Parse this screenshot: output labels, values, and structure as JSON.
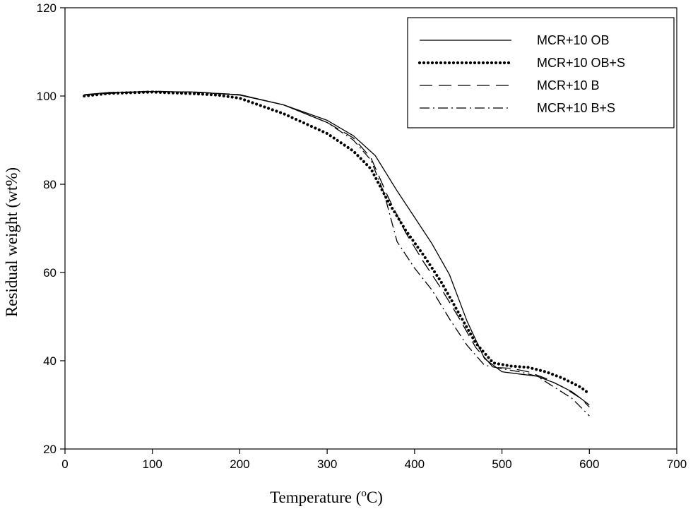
{
  "chart_data": {
    "type": "line",
    "title": "",
    "xlabel": "Temperature (",
    "xlabel_sup": "o",
    "xlabel_tail": "C)",
    "ylabel": "Residual weight (wt%)",
    "xlim": [
      0,
      700
    ],
    "ylim": [
      20,
      120
    ],
    "xticks": [
      "0",
      "100",
      "200",
      "300",
      "400",
      "500",
      "600",
      "700"
    ],
    "yticks": [
      "20",
      "40",
      "60",
      "80",
      "100",
      "120"
    ],
    "grid": false,
    "legend_position": "top-right",
    "series": [
      {
        "name": "MCR+10 OB",
        "style": "solid",
        "x": [
          22,
          50,
          100,
          150,
          200,
          250,
          300,
          330,
          355,
          380,
          400,
          420,
          440,
          460,
          480,
          500,
          520,
          540,
          560,
          580,
          600
        ],
        "y": [
          100.3,
          100.8,
          101.0,
          100.9,
          100.2,
          98.0,
          94.5,
          91.0,
          86.5,
          78.5,
          72.5,
          66.5,
          59.5,
          49.0,
          40.5,
          37.5,
          37.0,
          36.5,
          35.0,
          33.0,
          30.0
        ]
      },
      {
        "name": "MCR+10 OB+S",
        "style": "dotted",
        "x": [
          22,
          50,
          100,
          150,
          175,
          200,
          250,
          300,
          330,
          350,
          370,
          390,
          410,
          430,
          450,
          470,
          490,
          510,
          530,
          550,
          570,
          590,
          600
        ],
        "y": [
          100.0,
          100.6,
          100.9,
          100.5,
          100.2,
          99.5,
          96.0,
          91.5,
          87.5,
          83.5,
          76.0,
          69.5,
          64.0,
          58.0,
          51.0,
          44.0,
          39.5,
          38.8,
          38.5,
          37.5,
          36.0,
          34.0,
          32.5
        ]
      },
      {
        "name": "MCR+10 B",
        "style": "dashed",
        "x": [
          22,
          50,
          100,
          150,
          200,
          250,
          300,
          330,
          350,
          370,
          390,
          410,
          430,
          450,
          470,
          490,
          510,
          530,
          550,
          570,
          590,
          600
        ],
        "y": [
          100.2,
          100.6,
          101.0,
          100.9,
          100.3,
          98.0,
          94.0,
          90.5,
          86.0,
          77.0,
          69.0,
          62.5,
          56.5,
          50.0,
          43.0,
          38.5,
          38.3,
          37.5,
          36.0,
          34.0,
          31.5,
          29.5
        ]
      },
      {
        "name": "MCR+10 B+S",
        "style": "dashdot",
        "x": [
          22,
          50,
          100,
          150,
          200,
          250,
          300,
          330,
          350,
          365,
          380,
          400,
          420,
          440,
          460,
          480,
          500,
          520,
          540,
          560,
          580,
          600
        ],
        "y": [
          100.2,
          100.7,
          101.1,
          100.8,
          100.3,
          98.0,
          94.0,
          90.0,
          85.5,
          78.0,
          67.0,
          61.0,
          56.0,
          49.5,
          43.5,
          39.0,
          38.2,
          37.5,
          36.5,
          34.0,
          31.5,
          27.5
        ]
      }
    ]
  }
}
